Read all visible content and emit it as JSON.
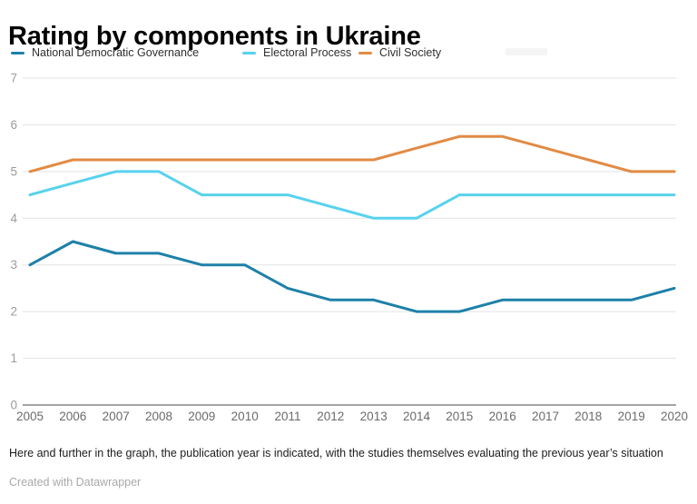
{
  "title": "Rating by components in Ukraine",
  "legend": {
    "items": [
      {
        "label": "National Democratic Governance",
        "color": "#1d81a8"
      },
      {
        "label": "Electoral Process",
        "color": "#58d2ed"
      },
      {
        "label": "Civil Society",
        "color": "#e28b44"
      }
    ]
  },
  "chart_data": {
    "type": "line",
    "title": "Rating by components in Ukraine",
    "xlabel": "",
    "ylabel": "",
    "x": [
      2005,
      2006,
      2007,
      2008,
      2009,
      2010,
      2011,
      2012,
      2013,
      2014,
      2015,
      2016,
      2017,
      2018,
      2019,
      2020
    ],
    "series": [
      {
        "name": "National Democratic Governance",
        "color": "#1d81a8",
        "values": [
          3.0,
          3.5,
          3.25,
          3.25,
          3.0,
          3.0,
          2.5,
          2.25,
          2.25,
          2.0,
          2.0,
          2.25,
          2.25,
          2.25,
          2.25,
          2.5
        ]
      },
      {
        "name": "Electoral Process",
        "color": "#58d2ed",
        "values": [
          4.5,
          4.75,
          5.0,
          5.0,
          4.5,
          4.5,
          4.5,
          4.25,
          4.0,
          4.0,
          4.5,
          4.5,
          4.5,
          4.5,
          4.5,
          4.5
        ]
      },
      {
        "name": "Civil Society",
        "color": "#e28b44",
        "values": [
          5.0,
          5.25,
          5.25,
          5.25,
          5.25,
          5.25,
          5.25,
          5.25,
          5.25,
          5.5,
          5.75,
          5.75,
          5.5,
          5.25,
          5.0,
          5.0
        ]
      }
    ],
    "ylim": [
      0,
      7
    ],
    "yticks": [
      0,
      1,
      2,
      3,
      4,
      5,
      6,
      7
    ],
    "grid": true,
    "legend_position": "top"
  },
  "colors": {
    "grid": "#e3e3e3",
    "baseline": "#4a4a4a",
    "x_tick": "#6b6b6b",
    "y_tick": "#9c9c9c",
    "background": "#ffffff"
  },
  "footnote": "Here and further in the graph, the publication year is indicated, with the studies themselves evaluating the previous year’s situation",
  "credit": "Created with Datawrapper"
}
